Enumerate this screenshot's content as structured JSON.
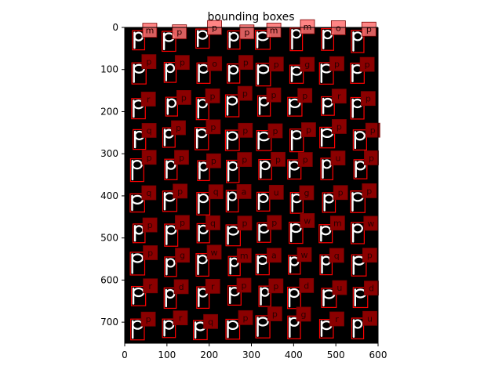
{
  "chart_data": {
    "type": "image",
    "title": "bounding boxes",
    "xlabel": "",
    "ylabel": "",
    "xlim": [
      0,
      600
    ],
    "ylim": [
      750,
      0
    ],
    "x_ticks": [
      0,
      100,
      200,
      300,
      400,
      500,
      600
    ],
    "y_ticks": [
      0,
      100,
      200,
      300,
      400,
      500,
      600,
      700
    ],
    "background_color": "#000000",
    "glyph_color": "#ffffff",
    "box_color": "#ff0000",
    "label_fill_color": "#8b0000",
    "grid": false,
    "row_centers": [
      30,
      110,
      190,
      265,
      340,
      415,
      490,
      565,
      640,
      715
    ],
    "col_centers": [
      33,
      108,
      183,
      258,
      330,
      405,
      480,
      555
    ],
    "label_letters": [
      [
        "m",
        "p",
        "p",
        "p",
        "m",
        "m",
        "o",
        "p"
      ],
      [
        "p",
        "p",
        "o",
        "p",
        "p",
        "g",
        "p",
        "p"
      ],
      [
        "r",
        "p",
        "p",
        "p",
        "p",
        "p",
        "r",
        "p"
      ],
      [
        "q",
        "p",
        "p",
        "p",
        "p",
        "p",
        "p",
        "p"
      ],
      [
        "p",
        "p",
        "p",
        "p",
        "p",
        "p",
        "u",
        "p"
      ],
      [
        "q",
        "p",
        "q",
        "a",
        "u",
        "g",
        "p",
        "p"
      ],
      [
        "p",
        "p",
        "q",
        "p",
        "p",
        "w",
        "m",
        "w"
      ],
      [
        "p",
        "g",
        "w",
        "m",
        "a",
        "w",
        "q",
        "p"
      ],
      [
        "r",
        "d",
        "r",
        "p",
        "p",
        "d",
        "u",
        "d"
      ],
      [
        "p",
        "r",
        "q",
        "p",
        "p",
        "g",
        "r",
        "u"
      ]
    ]
  }
}
